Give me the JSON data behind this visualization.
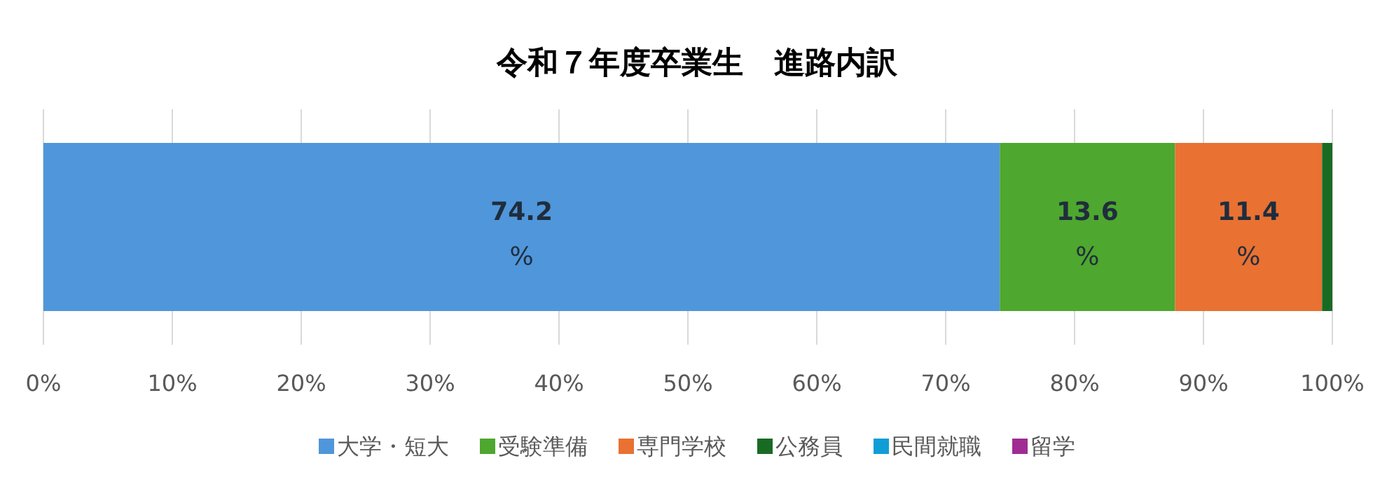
{
  "chart_data": {
    "type": "bar",
    "orientation": "horizontal",
    "stacked": true,
    "title": "令和７年度卒業生　進路内訳",
    "categories": [
      null
    ],
    "series": [
      {
        "name": "大学・短大",
        "color": "#5096da",
        "values": [
          74.2
        ],
        "value_labels": [
          "**74.2** %"
        ]
      },
      {
        "name": "受験準備",
        "color": "#4ea72e",
        "values": [
          13.6
        ],
        "value_labels": [
          "**13.6** %"
        ]
      },
      {
        "name": "専門学校",
        "color": "#e97132",
        "values": [
          11.4
        ],
        "value_labels": [
          "**11.4** %"
        ]
      },
      {
        "name": "公務員",
        "color": "#196b24",
        "values": [
          0.8
        ],
        "value_labels": [
          null
        ]
      },
      {
        "name": "民間就職",
        "color": "#0f9ed5",
        "values": [
          0
        ],
        "value_labels": [
          null
        ]
      },
      {
        "name": "留学",
        "color": "#a02b93",
        "values": [
          0
        ],
        "value_labels": [
          null
        ]
      }
    ],
    "xlim": [
      0,
      100
    ],
    "xticks": [
      {
        "value": 0,
        "label": "0%"
      },
      {
        "value": 10,
        "label": "10%"
      },
      {
        "value": 20,
        "label": "20%"
      },
      {
        "value": 30,
        "label": "30%"
      },
      {
        "value": 40,
        "label": "40%"
      },
      {
        "value": 50,
        "label": "50%"
      },
      {
        "value": 60,
        "label": "60%"
      },
      {
        "value": 70,
        "label": "70%"
      },
      {
        "value": 80,
        "label": "80%"
      },
      {
        "value": 90,
        "label": "90%"
      },
      {
        "value": 100,
        "label": "100%"
      }
    ],
    "grid": "x",
    "legend": "bottom"
  }
}
